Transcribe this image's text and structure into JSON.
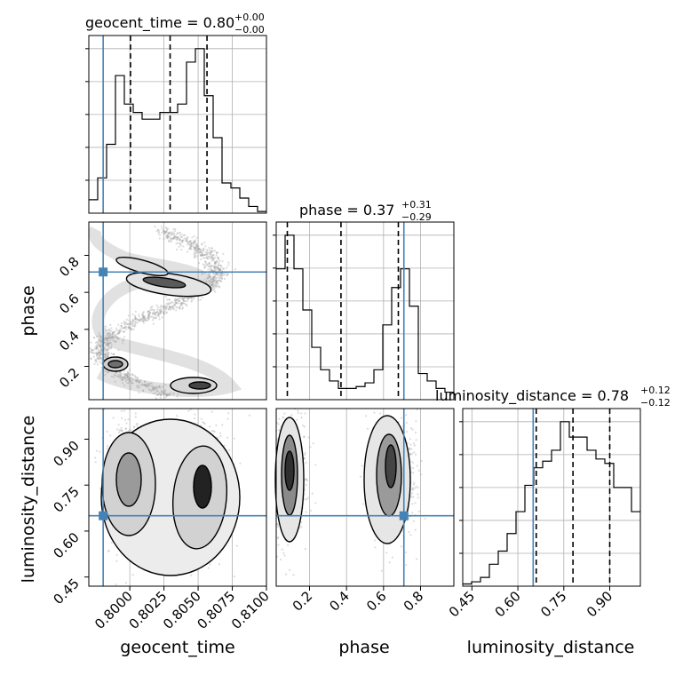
{
  "chart_data": {
    "type": "corner",
    "parameters": [
      "geocent_time",
      "phase",
      "luminosity_distance"
    ],
    "ranges": {
      "geocent_time": [
        0.797,
        0.81
      ],
      "phase": [
        0.02,
        0.98
      ],
      "luminosity_distance": [
        0.42,
        1.0
      ]
    },
    "truths": {
      "geocent_time": 0.79805,
      "phase": 0.71,
      "luminosity_distance": 0.65
    },
    "titles": {
      "geocent_time": {
        "label": "geocent_time = 0.80",
        "plus": "+0.00",
        "minus": "−0.00"
      },
      "phase": {
        "label": "phase = 0.37",
        "plus": "+0.31",
        "minus": "−0.29"
      },
      "luminosity_distance": {
        "label": "luminosity_distance = 0.78",
        "plus": "+0.12",
        "minus": "−0.12"
      }
    },
    "histograms": {
      "geocent_time": {
        "edges": [
          0.797,
          0.79765,
          0.7983,
          0.79895,
          0.7996,
          0.80025,
          0.8009,
          0.80155,
          0.8022,
          0.80285,
          0.8035,
          0.80415,
          0.8048,
          0.80545,
          0.8061,
          0.80675,
          0.8074,
          0.80805,
          0.8087,
          0.80935,
          0.81
        ],
        "counts": [
          8,
          21,
          41,
          82,
          65,
          60,
          56,
          56,
          60,
          60,
          65,
          90,
          98,
          70,
          45,
          18,
          15,
          9,
          4,
          1
        ],
        "quantiles": [
          0.80005,
          0.80295,
          0.80565
        ]
      },
      "phase": {
        "edges": [
          0.02,
          0.068,
          0.116,
          0.164,
          0.212,
          0.26,
          0.308,
          0.356,
          0.404,
          0.452,
          0.5,
          0.548,
          0.596,
          0.644,
          0.692,
          0.74,
          0.788,
          0.836,
          0.884,
          0.932,
          0.98
        ],
        "counts": [
          70,
          88,
          70,
          48,
          28,
          16,
          10,
          6,
          6,
          7,
          9,
          16,
          40,
          60,
          70,
          50,
          14,
          10,
          6,
          4
        ],
        "quantiles": [
          0.08,
          0.37,
          0.68
        ]
      },
      "luminosity_distance": {
        "edges": [
          0.42,
          0.449,
          0.478,
          0.507,
          0.536,
          0.565,
          0.594,
          0.623,
          0.652,
          0.681,
          0.71,
          0.739,
          0.768,
          0.797,
          0.826,
          0.855,
          0.884,
          0.913,
          0.942,
          0.971,
          1.0
        ],
        "counts": [
          1,
          2,
          4,
          10,
          16,
          24,
          34,
          46,
          54,
          57,
          62,
          75,
          68,
          68,
          62,
          58,
          56,
          45,
          45,
          34
        ],
        "quantiles": [
          0.66,
          0.78,
          0.9
        ]
      }
    },
    "ticks": {
      "geocent_time": [
        "0.8000",
        "0.8025",
        "0.8050",
        "0.8075",
        "0.8100"
      ],
      "phase": [
        "0.2",
        "0.4",
        "0.6",
        "0.8"
      ],
      "luminosity_distance": [
        "0.45",
        "0.60",
        "0.75",
        "0.90"
      ]
    },
    "tick_values": {
      "geocent_time": [
        0.8,
        0.8025,
        0.805,
        0.8075,
        0.81
      ],
      "phase": [
        0.2,
        0.4,
        0.6,
        0.8
      ],
      "luminosity_distance": [
        0.45,
        0.6,
        0.75,
        0.9
      ]
    },
    "axis_labels": {
      "geocent_time": "geocent_time",
      "phase": "phase",
      "luminosity_distance": "luminosity_distance"
    },
    "truth_color": "#4682b4",
    "hist_color": "#000000",
    "grid": true
  }
}
